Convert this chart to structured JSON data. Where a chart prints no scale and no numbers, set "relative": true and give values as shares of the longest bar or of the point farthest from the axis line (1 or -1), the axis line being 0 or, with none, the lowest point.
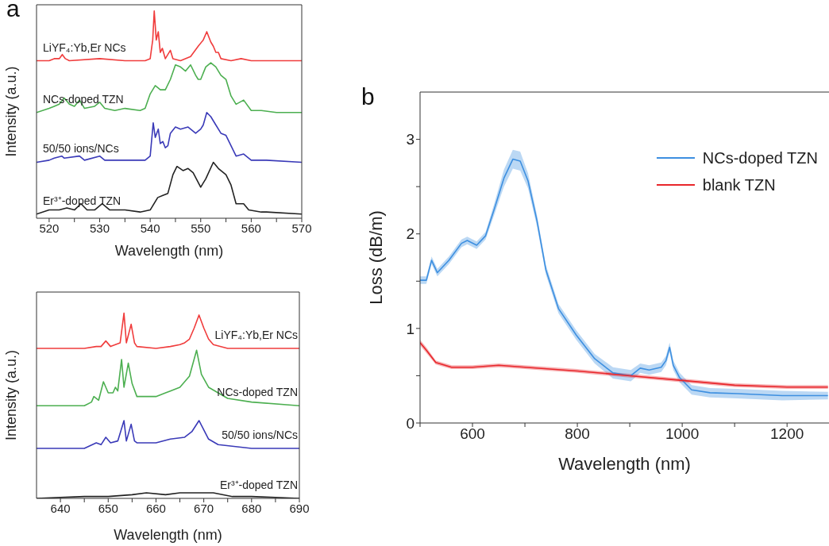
{
  "chart_data": [
    {
      "type": "line",
      "relative": true,
      "annotations": [
        "a"
      ],
      "xlabel": "Wavelength (nm)",
      "ylabel": "Intensity (a.u.)",
      "xlim": [
        517.5,
        570
      ],
      "xticks": [
        520,
        {
          "value": 525,
          "label": null
        },
        530,
        {
          "value": 535,
          "label": null
        },
        540,
        {
          "value": 545,
          "label": null
        },
        550,
        {
          "value": 555,
          "label": null
        },
        560,
        {
          "value": 565,
          "label": null
        },
        570
      ],
      "series": [
        {
          "name": "LiYF₄:Yb,Er NCs",
          "color": "#f03c3c",
          "x": [
            517.5,
            520,
            521,
            522,
            522.6,
            523.2,
            524,
            530,
            535,
            539,
            540,
            540.5,
            540.8,
            541.2,
            541.6,
            542,
            542.4,
            543,
            544,
            544.5,
            546,
            548,
            549.5,
            550.5,
            551.2,
            552,
            552.5,
            553,
            553.5,
            554,
            556,
            558,
            560,
            570
          ],
          "values": [
            0.76,
            0.76,
            0.77,
            0.77,
            0.79,
            0.77,
            0.76,
            0.77,
            0.76,
            0.76,
            0.77,
            0.86,
            1.0,
            0.86,
            0.9,
            0.8,
            0.82,
            0.77,
            0.81,
            0.77,
            0.76,
            0.78,
            0.83,
            0.86,
            0.9,
            0.85,
            0.83,
            0.8,
            0.8,
            0.77,
            0.76,
            0.77,
            0.76,
            0.76
          ]
        },
        {
          "name": "NCs-doped TZN",
          "color": "#4caf50",
          "x": [
            517.5,
            520,
            521,
            522,
            523,
            524,
            525,
            526,
            527,
            529,
            530,
            531,
            533,
            535,
            538,
            539,
            540,
            540.5,
            541,
            541.5,
            542,
            543,
            544,
            545,
            546,
            547,
            548,
            549,
            549.5,
            550,
            551,
            552,
            553,
            554,
            555,
            556,
            557,
            558.5,
            560,
            562,
            565,
            570
          ],
          "values": [
            0.51,
            0.53,
            0.54,
            0.55,
            0.58,
            0.55,
            0.54,
            0.57,
            0.53,
            0.54,
            0.56,
            0.53,
            0.52,
            0.53,
            0.52,
            0.53,
            0.6,
            0.62,
            0.64,
            0.63,
            0.62,
            0.62,
            0.67,
            0.74,
            0.73,
            0.71,
            0.74,
            0.69,
            0.67,
            0.67,
            0.73,
            0.75,
            0.73,
            0.69,
            0.67,
            0.59,
            0.55,
            0.57,
            0.52,
            0.52,
            0.51,
            0.51
          ]
        },
        {
          "name": "50/50 ions/NCs",
          "color": "#3a3ab8",
          "x": [
            517.5,
            520,
            521,
            522.5,
            523,
            526,
            527,
            530,
            531,
            535,
            539,
            540,
            540.6,
            541,
            541.6,
            542,
            542.5,
            543,
            543.5,
            544,
            545,
            546,
            547.5,
            549,
            550,
            550.5,
            551.2,
            552,
            553,
            554,
            555,
            556,
            557,
            558.5,
            560,
            563,
            570
          ],
          "values": [
            0.27,
            0.28,
            0.29,
            0.3,
            0.29,
            0.3,
            0.28,
            0.3,
            0.28,
            0.28,
            0.28,
            0.3,
            0.46,
            0.39,
            0.43,
            0.36,
            0.37,
            0.34,
            0.35,
            0.41,
            0.44,
            0.43,
            0.44,
            0.41,
            0.43,
            0.45,
            0.51,
            0.49,
            0.45,
            0.41,
            0.4,
            0.35,
            0.3,
            0.31,
            0.28,
            0.28,
            0.27
          ]
        },
        {
          "name": "Er³⁺-doped TZN",
          "color": "#222222",
          "x": [
            517.5,
            520,
            521,
            522,
            523.5,
            525,
            526.3,
            527.5,
            529,
            530.5,
            532,
            535,
            538,
            540,
            541.5,
            542.5,
            543.5,
            544.5,
            545.3,
            546.5,
            547.5,
            548.5,
            550,
            551,
            552.5,
            553.5,
            555,
            556,
            557,
            558.5,
            559.5,
            562,
            563,
            570
          ],
          "values": [
            0.02,
            0.04,
            0.04,
            0.04,
            0.05,
            0.04,
            0.07,
            0.04,
            0.04,
            0.07,
            0.04,
            0.04,
            0.03,
            0.04,
            0.1,
            0.11,
            0.12,
            0.21,
            0.25,
            0.23,
            0.24,
            0.22,
            0.15,
            0.19,
            0.27,
            0.24,
            0.21,
            0.16,
            0.07,
            0.07,
            0.04,
            0.03,
            0.03,
            0.02
          ]
        }
      ]
    },
    {
      "type": "line",
      "relative": true,
      "xlabel": "Wavelength (nm)",
      "ylabel": "Intensity (a.u.)",
      "xlim": [
        635,
        690
      ],
      "xticks": [
        640,
        {
          "value": 645,
          "label": null
        },
        650,
        {
          "value": 655,
          "label": null
        },
        660,
        {
          "value": 665,
          "label": null
        },
        670,
        {
          "value": 675,
          "label": null
        },
        680,
        {
          "value": 685,
          "label": null
        },
        690
      ],
      "series": [
        {
          "name": "LiYF₄:Yb,Er NCs",
          "color": "#f03c3c",
          "x": [
            635,
            645,
            647.5,
            648.5,
            649.5,
            650.5,
            651.5,
            652.5,
            653.3,
            653.8,
            654.8,
            655.5,
            656,
            660,
            663,
            665,
            666,
            667,
            668,
            669,
            670,
            671,
            672,
            675,
            680,
            690
          ],
          "values": [
            0.81,
            0.81,
            0.82,
            0.82,
            0.85,
            0.82,
            0.83,
            0.84,
            1.0,
            0.84,
            0.94,
            0.84,
            0.82,
            0.81,
            0.82,
            0.83,
            0.84,
            0.86,
            0.92,
            0.99,
            0.92,
            0.86,
            0.83,
            0.81,
            0.81,
            0.81
          ]
        },
        {
          "name": "NCs-doped TZN",
          "color": "#4caf50",
          "x": [
            635,
            645,
            646.5,
            647,
            648,
            649,
            650,
            651,
            651.5,
            652,
            652.8,
            653.3,
            654.2,
            655,
            656,
            660,
            662,
            663,
            665,
            667,
            668.5,
            669.5,
            671,
            673,
            675,
            680,
            690
          ],
          "values": [
            0.5,
            0.5,
            0.52,
            0.55,
            0.53,
            0.63,
            0.57,
            0.57,
            0.6,
            0.58,
            0.75,
            0.6,
            0.73,
            0.62,
            0.55,
            0.55,
            0.57,
            0.58,
            0.6,
            0.66,
            0.8,
            0.67,
            0.6,
            0.57,
            0.54,
            0.52,
            0.5
          ]
        },
        {
          "name": "50/50 ions/NCs",
          "color": "#3a3ab8",
          "x": [
            635,
            645,
            647.5,
            648.5,
            649.5,
            650.5,
            652,
            653.3,
            653.8,
            654.8,
            655.5,
            656,
            660,
            663,
            666,
            667.5,
            669,
            670,
            671,
            673,
            680,
            690
          ],
          "values": [
            0.27,
            0.27,
            0.3,
            0.29,
            0.33,
            0.3,
            0.31,
            0.42,
            0.31,
            0.4,
            0.31,
            0.3,
            0.3,
            0.32,
            0.33,
            0.36,
            0.42,
            0.37,
            0.32,
            0.29,
            0.27,
            0.27
          ]
        },
        {
          "name": "Er³⁺-doped TZN",
          "color": "#222222",
          "x": [
            635,
            645,
            650,
            655,
            658,
            662,
            665,
            669,
            672,
            676,
            680,
            690
          ],
          "values": [
            0.0,
            0.01,
            0.01,
            0.02,
            0.03,
            0.02,
            0.03,
            0.03,
            0.03,
            0.01,
            0.01,
            0.0
          ]
        }
      ]
    },
    {
      "type": "line",
      "annotations": [
        "b"
      ],
      "xlabel": "Wavelength (nm)",
      "ylabel": "Loss (dB/m)",
      "xlim": [
        500,
        1280
      ],
      "ylim": [
        0,
        3.5
      ],
      "xticks": [
        {
          "value": 500,
          "label": null
        },
        600,
        {
          "value": 700,
          "label": null
        },
        800,
        {
          "value": 900,
          "label": null
        },
        1000,
        {
          "value": 1100,
          "label": null
        },
        1200
      ],
      "yticks": [
        0,
        {
          "value": 0.5,
          "label": null
        },
        1,
        {
          "value": 1.5,
          "label": null
        },
        2,
        {
          "value": 2.5,
          "label": null
        },
        3
      ],
      "legend": "top right",
      "series": [
        {
          "name": "NCs-doped TZN",
          "color": "#3d8fe0",
          "x": [
            500,
            512,
            522,
            533,
            555,
            579,
            590,
            608,
            625,
            642,
            660,
            677,
            691,
            706,
            723,
            740,
            764,
            798,
            833,
            868,
            902,
            920,
            937,
            960,
            969,
            976,
            983,
            995,
            1018,
            1053,
            1105,
            1191,
            1278
          ],
          "values": [
            1.51,
            1.51,
            1.72,
            1.59,
            1.72,
            1.9,
            1.93,
            1.88,
            1.98,
            2.27,
            2.59,
            2.79,
            2.77,
            2.56,
            2.14,
            1.62,
            1.21,
            0.93,
            0.68,
            0.53,
            0.5,
            0.58,
            0.56,
            0.59,
            0.66,
            0.8,
            0.61,
            0.48,
            0.35,
            0.32,
            0.31,
            0.29,
            0.29
          ],
          "lower": [
            1.47,
            1.47,
            1.68,
            1.55,
            1.68,
            1.86,
            1.89,
            1.84,
            1.94,
            2.21,
            2.5,
            2.69,
            2.67,
            2.48,
            2.08,
            1.57,
            1.16,
            0.88,
            0.63,
            0.47,
            0.44,
            0.53,
            0.51,
            0.54,
            0.61,
            0.75,
            0.56,
            0.43,
            0.3,
            0.27,
            0.26,
            0.24,
            0.25
          ],
          "upper": [
            1.55,
            1.55,
            1.76,
            1.63,
            1.76,
            1.94,
            1.97,
            1.92,
            2.02,
            2.33,
            2.68,
            2.89,
            2.87,
            2.64,
            2.2,
            1.67,
            1.26,
            0.98,
            0.73,
            0.59,
            0.56,
            0.63,
            0.61,
            0.64,
            0.71,
            0.85,
            0.66,
            0.53,
            0.4,
            0.37,
            0.36,
            0.34,
            0.33
          ]
        },
        {
          "name": "blank TZN",
          "color": "#e8262b",
          "x": [
            500,
            512,
            530,
            560,
            600,
            650,
            700,
            800,
            900,
            1000,
            1100,
            1200,
            1278
          ],
          "values": [
            0.85,
            0.77,
            0.64,
            0.59,
            0.59,
            0.61,
            0.59,
            0.55,
            0.5,
            0.45,
            0.4,
            0.38,
            0.38
          ],
          "lower": [
            0.82,
            0.74,
            0.62,
            0.57,
            0.57,
            0.59,
            0.57,
            0.53,
            0.48,
            0.43,
            0.38,
            0.36,
            0.36
          ],
          "upper": [
            0.88,
            0.8,
            0.66,
            0.61,
            0.61,
            0.63,
            0.61,
            0.57,
            0.52,
            0.47,
            0.42,
            0.4,
            0.4
          ]
        }
      ]
    }
  ]
}
